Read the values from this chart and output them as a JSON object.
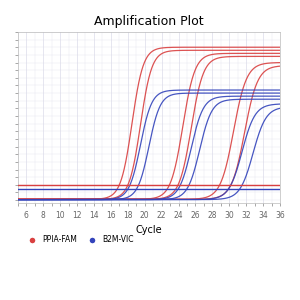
{
  "title": "Amplification Plot",
  "xlabel": "Cycle",
  "ylabel": "",
  "xlim": [
    5,
    36
  ],
  "ylim": [
    -0.02,
    1.1
  ],
  "xticks": [
    6,
    8,
    10,
    12,
    14,
    16,
    18,
    20,
    22,
    24,
    26,
    28,
    30,
    32,
    34,
    36
  ],
  "background_color": "#ffffff",
  "grid_color": "#d8d8e8",
  "red_color": "#d94040",
  "blue_color": "#3344bb",
  "threshold_red": 0.1,
  "threshold_blue": 0.07,
  "red_curves": [
    {
      "midpoint": 18.5,
      "steepness": 0.3,
      "plateau": 1.0,
      "baseline": 0.005
    },
    {
      "midpoint": 19.5,
      "steepness": 0.3,
      "plateau": 0.98,
      "baseline": 0.005
    },
    {
      "midpoint": 24.5,
      "steepness": 0.28,
      "plateau": 0.96,
      "baseline": 0.005
    },
    {
      "midpoint": 25.5,
      "steepness": 0.28,
      "plateau": 0.94,
      "baseline": 0.005
    },
    {
      "midpoint": 30.5,
      "steepness": 0.26,
      "plateau": 0.9,
      "baseline": 0.005
    },
    {
      "midpoint": 31.8,
      "steepness": 0.26,
      "plateau": 0.88,
      "baseline": 0.005
    }
  ],
  "blue_curves": [
    {
      "midpoint": 19.5,
      "steepness": 0.3,
      "plateau": 0.72,
      "baseline": 0.003
    },
    {
      "midpoint": 20.5,
      "steepness": 0.3,
      "plateau": 0.7,
      "baseline": 0.003
    },
    {
      "midpoint": 25.5,
      "steepness": 0.28,
      "plateau": 0.68,
      "baseline": 0.003
    },
    {
      "midpoint": 26.5,
      "steepness": 0.28,
      "plateau": 0.66,
      "baseline": 0.003
    },
    {
      "midpoint": 31.5,
      "steepness": 0.26,
      "plateau": 0.63,
      "baseline": 0.003
    },
    {
      "midpoint": 32.8,
      "steepness": 0.26,
      "plateau": 0.61,
      "baseline": 0.003
    }
  ],
  "legend_labels": [
    "PPIA-FAM",
    "B2M-VIC"
  ],
  "title_fontsize": 9,
  "axis_fontsize": 7,
  "tick_fontsize": 5.5
}
